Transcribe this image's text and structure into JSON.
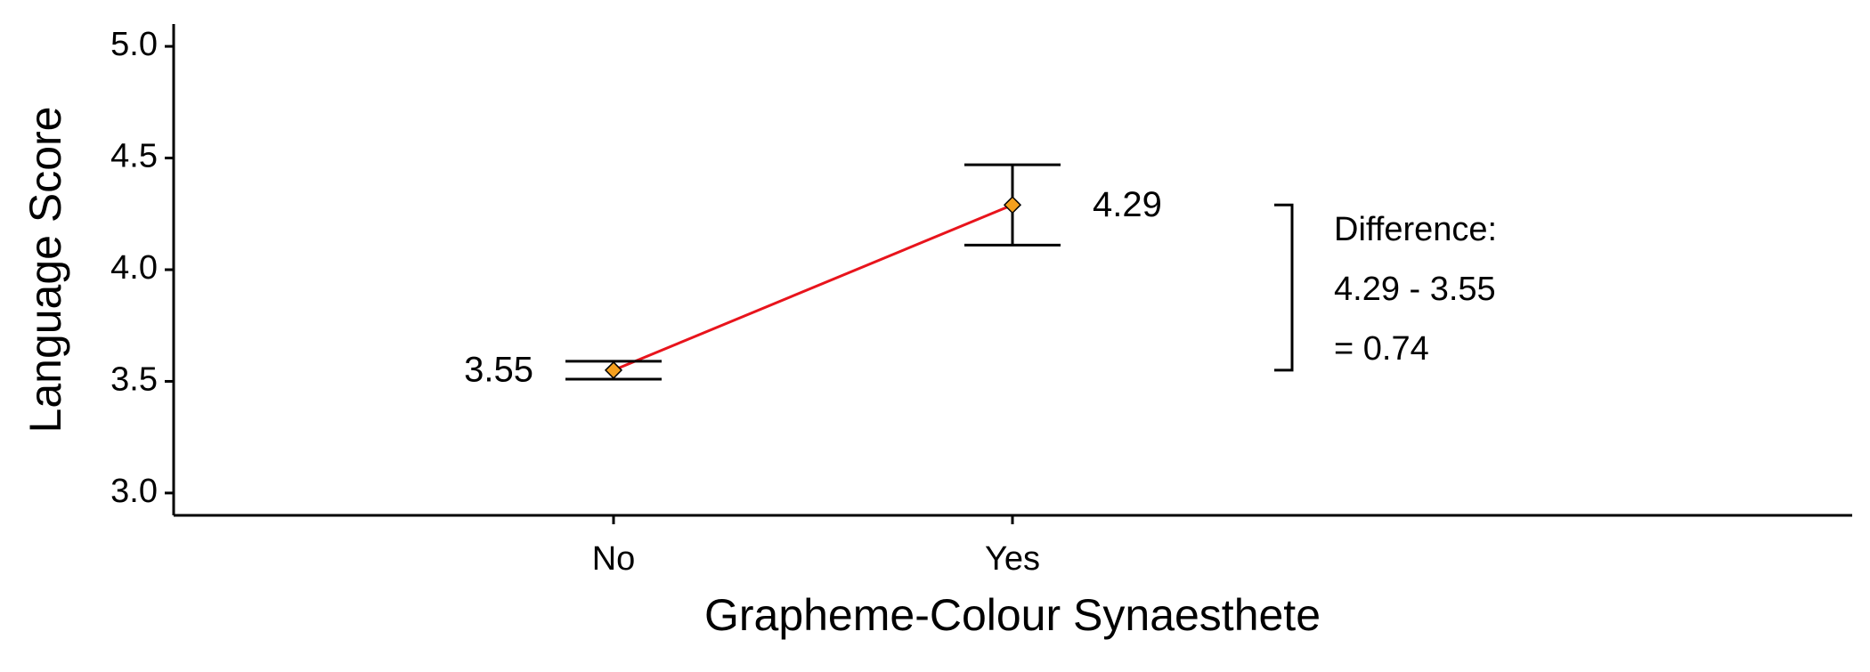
{
  "chart_data": {
    "type": "point",
    "x_label": "Grapheme-Colour Synaesthete",
    "y_label": "Language Score",
    "categories": [
      "No",
      "Yes"
    ],
    "values": [
      3.55,
      4.29
    ],
    "errors": [
      0.04,
      0.18
    ],
    "line_color": "#e8141c",
    "marker_color": "#f5a01e",
    "ylim": [
      2.9,
      5.1
    ],
    "yticks": [
      {
        "value": 3,
        "label": "3.0"
      },
      3.5,
      {
        "value": 4,
        "label": "4.0"
      },
      4.5,
      {
        "value": 5,
        "label": "5.0"
      }
    ],
    "annotation": [
      "Difference:",
      "4.29 - 3.55",
      "= 0.74"
    ]
  }
}
